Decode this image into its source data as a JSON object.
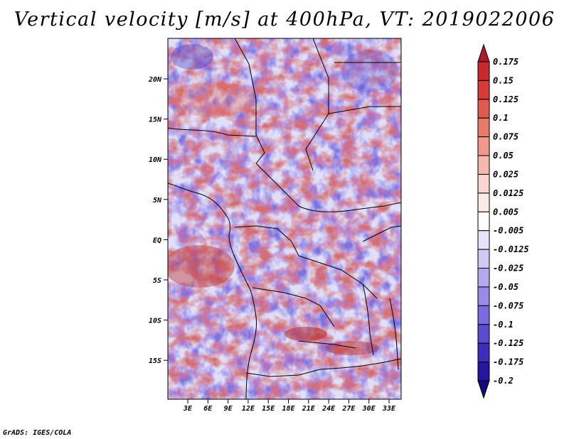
{
  "title": "Vertical velocity [m/s] at 400hPa, VT: 2019022006",
  "credit": "GrADS: IGES/COLA",
  "map": {
    "lon_ticks": [
      "3E",
      "6E",
      "9E",
      "12E",
      "15E",
      "18E",
      "21E",
      "24E",
      "27E",
      "30E",
      "33E"
    ],
    "lat_ticks": [
      "20N",
      "15N",
      "10N",
      "5N",
      "EQ",
      "5S",
      "10S",
      "15S"
    ],
    "lon_range": [
      0,
      34.5
    ],
    "lat_range": [
      -19,
      24
    ]
  },
  "colorbar": {
    "labels": [
      "0.175",
      "0.15",
      "0.125",
      "0.1",
      "0.075",
      "0.05",
      "0.025",
      "0.0125",
      "0.005",
      "-0.005",
      "-0.0125",
      "-0.025",
      "-0.05",
      "-0.075",
      "-0.1",
      "-0.125",
      "-0.175",
      "-0.2"
    ],
    "colors": [
      "#b2182b",
      "#c7282e",
      "#d63b3a",
      "#e05a4f",
      "#e87a6a",
      "#ef9a8c",
      "#f4b9ae",
      "#f8d6cf",
      "#fbeae6",
      "#ffffff",
      "#e6e3fa",
      "#cfc9f4",
      "#b3aaee",
      "#978be6",
      "#7a6cde",
      "#5b4ccf",
      "#3d2fbd",
      "#2414a0",
      "#130a80"
    ]
  }
}
